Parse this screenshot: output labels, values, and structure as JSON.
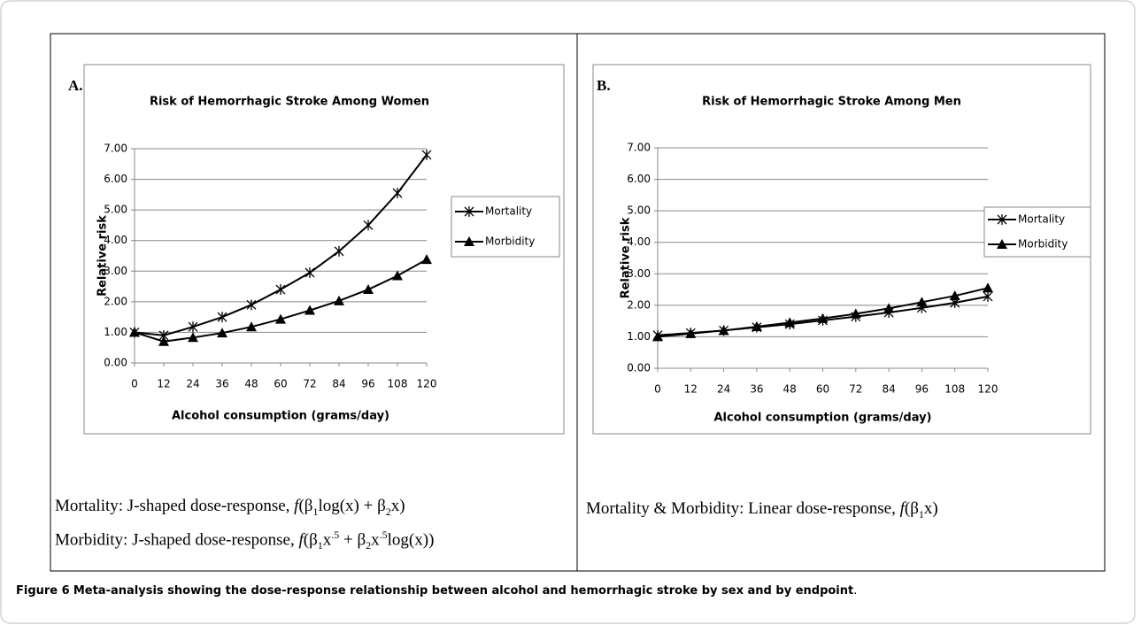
{
  "chart_data": [
    {
      "type": "line",
      "title": "Risk of Hemorrhagic Stroke Among Women",
      "x_label": "Alcohol consumption (grams/day)",
      "y_label": "Relative risk",
      "x": [
        0,
        12,
        24,
        36,
        48,
        60,
        72,
        84,
        96,
        108,
        120
      ],
      "series": [
        {
          "name": "Mortality",
          "color": "#000000",
          "marker": "star",
          "values": [
            1.0,
            0.9,
            1.18,
            1.5,
            1.9,
            2.4,
            2.95,
            3.65,
            4.5,
            5.55,
            6.8
          ]
        },
        {
          "name": "Morbidity",
          "color": "#000000",
          "marker": "triangle",
          "values": [
            1.0,
            0.7,
            0.83,
            0.98,
            1.18,
            1.43,
            1.72,
            2.03,
            2.4,
            2.85,
            3.38
          ]
        }
      ],
      "xlim": [
        0,
        120
      ],
      "xticks": [
        0,
        12,
        24,
        36,
        48,
        60,
        72,
        84,
        96,
        108,
        120
      ],
      "ylim": [
        0,
        7
      ],
      "yticks": [
        {
          "value": 0,
          "label": "0.00"
        },
        {
          "value": 1,
          "label": "1.00"
        },
        {
          "value": 2,
          "label": "2.00"
        },
        {
          "value": 3,
          "label": "3.00"
        },
        {
          "value": 4,
          "label": "4.00"
        },
        {
          "value": 5,
          "label": "5.00"
        },
        {
          "value": 6,
          "label": "6.00"
        },
        {
          "value": 7,
          "label": "7.00"
        }
      ],
      "grid": true,
      "legend": "right"
    },
    {
      "type": "line",
      "title": "Risk of Hemorrhagic Stroke Among Men",
      "x_label": "Alcohol consumption (grams/day)",
      "y_label": "Relative risk",
      "x": [
        0,
        12,
        24,
        36,
        48,
        60,
        72,
        84,
        96,
        108,
        120
      ],
      "series": [
        {
          "name": "Mortality",
          "color": "#000000",
          "marker": "star",
          "values": [
            1.05,
            1.12,
            1.2,
            1.3,
            1.4,
            1.52,
            1.64,
            1.77,
            1.92,
            2.08,
            2.28
          ]
        },
        {
          "name": "Morbidity",
          "color": "#000000",
          "marker": "triangle",
          "values": [
            1.0,
            1.1,
            1.2,
            1.32,
            1.45,
            1.58,
            1.73,
            1.9,
            2.1,
            2.3,
            2.55
          ]
        }
      ],
      "xlim": [
        0,
        120
      ],
      "xticks": [
        0,
        12,
        24,
        36,
        48,
        60,
        72,
        84,
        96,
        108,
        120
      ],
      "ylim": [
        0,
        7
      ],
      "yticks": [
        {
          "value": 0,
          "label": "0.00"
        },
        {
          "value": 1,
          "label": "1.00"
        },
        {
          "value": 2,
          "label": "2.00"
        },
        {
          "value": 3,
          "label": "3.00"
        },
        {
          "value": 4,
          "label": "4.00"
        },
        {
          "value": 5,
          "label": "5.00"
        },
        {
          "value": 6,
          "label": "6.00"
        },
        {
          "value": 7,
          "label": "7.00"
        }
      ],
      "grid": true,
      "legend": "right"
    }
  ],
  "panels": [
    {
      "label": "A.",
      "notes": [
        [
          "Mortality: J-shaped dose-response, ",
          {
            "italic": "f"
          },
          "(β",
          {
            "sub": "1"
          },
          "log(x) + β",
          {
            "sub": "2"
          },
          "x)"
        ],
        [
          "Morbidity: J-shaped dose-response, ",
          {
            "italic": "f"
          },
          "(β",
          {
            "sub": "1"
          },
          "x",
          {
            "sup": ".5"
          },
          " + β",
          {
            "sub": "2"
          },
          "x",
          {
            "sup": ".5"
          },
          "log(x))"
        ]
      ]
    },
    {
      "label": "B.",
      "notes": [
        [
          "Mortality & Morbidity: Linear dose-response, ",
          {
            "italic": "f"
          },
          "(β",
          {
            "sub": "1"
          },
          "x)"
        ]
      ]
    }
  ],
  "caption": {
    "label": "Figure 6",
    "text": "Meta-analysis showing the dose-response relationship between alcohol and hemorrhagic stroke by sex and by endpoint",
    "end": "."
  }
}
